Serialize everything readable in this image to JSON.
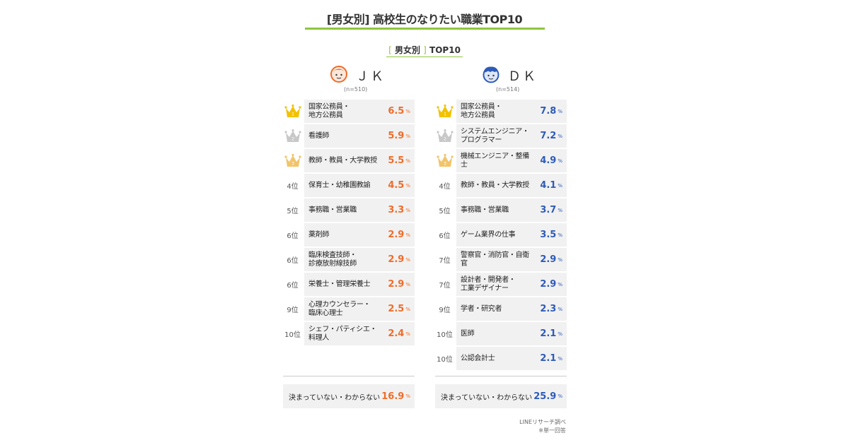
{
  "header": {
    "title": "[男女別] 高校生のなりたい職業TOP10",
    "subtitle_open": "[",
    "subtitle_text": "男女別",
    "subtitle_close": "]",
    "subtitle_suffix": "TOP10"
  },
  "colors": {
    "accent_green": "#8dc63f",
    "jk_value": "#ee6d2a",
    "dk_value": "#2e5bb8",
    "gold": "#f2c200",
    "silver": "#c8c8c8",
    "bronze": "#f2c46a"
  },
  "chart_data": {
    "type": "table",
    "title": "[男女別] 高校生のなりたい職業TOP10",
    "unit": "%",
    "groups": [
      {
        "name": "ＪＫ",
        "icon": "girl-face-icon",
        "n_label": "(n=510)",
        "rows": [
          {
            "rank": "1",
            "rank_icon": "gold-crown-icon",
            "job": "国家公務員・\n地方公務員",
            "value": 6.5
          },
          {
            "rank": "2",
            "rank_icon": "silver-crown-icon",
            "job": "看護師",
            "value": 5.9
          },
          {
            "rank": "3",
            "rank_icon": "bronze-crown-icon",
            "job": "教師・教員・大学教授",
            "value": 5.5
          },
          {
            "rank": "4位",
            "job": "保育士・幼稚園教諭",
            "value": 4.5
          },
          {
            "rank": "5位",
            "job": "事務職・営業職",
            "value": 3.3
          },
          {
            "rank": "6位",
            "job": "薬剤師",
            "value": 2.9
          },
          {
            "rank": "6位",
            "job": "臨床検査技師・\n診療放射線技師",
            "value": 2.9
          },
          {
            "rank": "6位",
            "job": "栄養士・管理栄養士",
            "value": 2.9
          },
          {
            "rank": "9位",
            "job": "心理カウンセラー・\n臨床心理士",
            "value": 2.5
          },
          {
            "rank": "10位",
            "job": "シェフ・パティシエ・\n料理人",
            "value": 2.4
          }
        ],
        "undecided": {
          "label": "決まっていない・わからない",
          "value": 16.9
        }
      },
      {
        "name": "ＤＫ",
        "icon": "boy-face-icon",
        "n_label": "(n=514)",
        "rows": [
          {
            "rank": "1",
            "rank_icon": "gold-crown-icon",
            "job": "国家公務員・\n地方公務員",
            "value": 7.8
          },
          {
            "rank": "2",
            "rank_icon": "silver-crown-icon",
            "job": "システムエンジニア・\nプログラマー",
            "value": 7.2
          },
          {
            "rank": "3",
            "rank_icon": "bronze-crown-icon",
            "job": "機械エンジニア・整備士",
            "value": 4.9
          },
          {
            "rank": "4位",
            "job": "教師・教員・大学教授",
            "value": 4.1
          },
          {
            "rank": "5位",
            "job": "事務職・営業職",
            "value": 3.7
          },
          {
            "rank": "6位",
            "job": "ゲーム業界の仕事",
            "value": 3.5
          },
          {
            "rank": "7位",
            "job": "警察官・消防官・自衛官",
            "value": 2.9
          },
          {
            "rank": "7位",
            "job": "設計者・開発者・\n工業デザイナー",
            "value": 2.9
          },
          {
            "rank": "9位",
            "job": "学者・研究者",
            "value": 2.3
          },
          {
            "rank": "10位",
            "job": "医師",
            "value": 2.1
          },
          {
            "rank": "10位",
            "job": "公認会計士",
            "value": 2.1
          }
        ],
        "undecided": {
          "label": "決まっていない・わからない",
          "value": 25.9
        }
      }
    ]
  },
  "footer": {
    "source": "LINEリサーチ調べ",
    "note": "※単一回答"
  }
}
